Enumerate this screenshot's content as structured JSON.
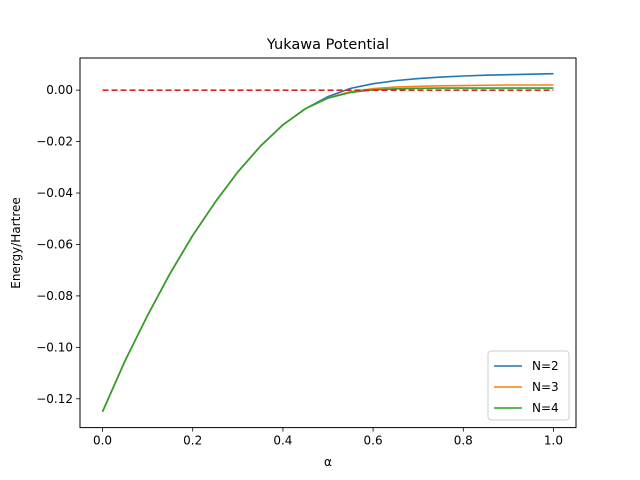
{
  "chart_data": {
    "type": "line",
    "title": "Yukawa Potential",
    "xlabel": "α",
    "ylabel": "Energy/Hartree",
    "xlim": [
      -0.05,
      1.05
    ],
    "ylim": [
      -0.1312,
      0.0125
    ],
    "xticks": [
      0.0,
      0.2,
      0.4,
      0.6,
      0.8,
      1.0
    ],
    "xtick_labels": [
      "0.0",
      "0.2",
      "0.4",
      "0.6",
      "0.8",
      "1.0"
    ],
    "yticks": [
      -0.12,
      -0.1,
      -0.08,
      -0.06,
      -0.04,
      -0.02,
      0.0
    ],
    "ytick_labels": [
      "−0.12",
      "−0.10",
      "−0.08",
      "−0.06",
      "−0.04",
      "−0.02",
      "0.00"
    ],
    "grid": false,
    "legend_position": "lower right",
    "x": [
      0.0,
      0.05,
      0.1,
      0.15,
      0.2,
      0.25,
      0.3,
      0.35,
      0.4,
      0.45,
      0.5,
      0.55,
      0.6,
      0.65,
      0.7,
      0.75,
      0.8,
      0.85,
      0.9,
      0.95,
      1.0
    ],
    "series": [
      {
        "name": "N=2",
        "color": "#1f77b4",
        "values": [
          -0.125,
          -0.1052,
          -0.0875,
          -0.0712,
          -0.0565,
          -0.0435,
          -0.0318,
          -0.0218,
          -0.0135,
          -0.0072,
          -0.0025,
          0.0007,
          0.0025,
          0.0037,
          0.0045,
          0.0051,
          0.0055,
          0.0058,
          0.006,
          0.0062,
          0.0064
        ]
      },
      {
        "name": "N=3",
        "color": "#ff7f0e",
        "values": [
          -0.125,
          -0.1052,
          -0.0875,
          -0.0712,
          -0.0565,
          -0.0435,
          -0.0318,
          -0.0218,
          -0.0135,
          -0.0072,
          -0.003,
          -0.0006,
          0.0006,
          0.0012,
          0.0015,
          0.0017,
          0.0018,
          0.0019,
          0.002,
          0.002,
          0.002
        ]
      },
      {
        "name": "N=4",
        "color": "#2ca02c",
        "values": [
          -0.125,
          -0.1052,
          -0.0875,
          -0.0712,
          -0.0565,
          -0.0435,
          -0.0318,
          -0.0218,
          -0.0135,
          -0.0072,
          -0.0031,
          -0.0009,
          0.0001,
          0.0005,
          0.0007,
          0.0008,
          0.0008,
          0.0008,
          0.0008,
          0.0008,
          0.0008
        ]
      }
    ],
    "reference_line": {
      "style": "dashed",
      "color": "#d62728",
      "y": 0.0,
      "x_range": [
        0.0,
        1.0
      ]
    }
  }
}
